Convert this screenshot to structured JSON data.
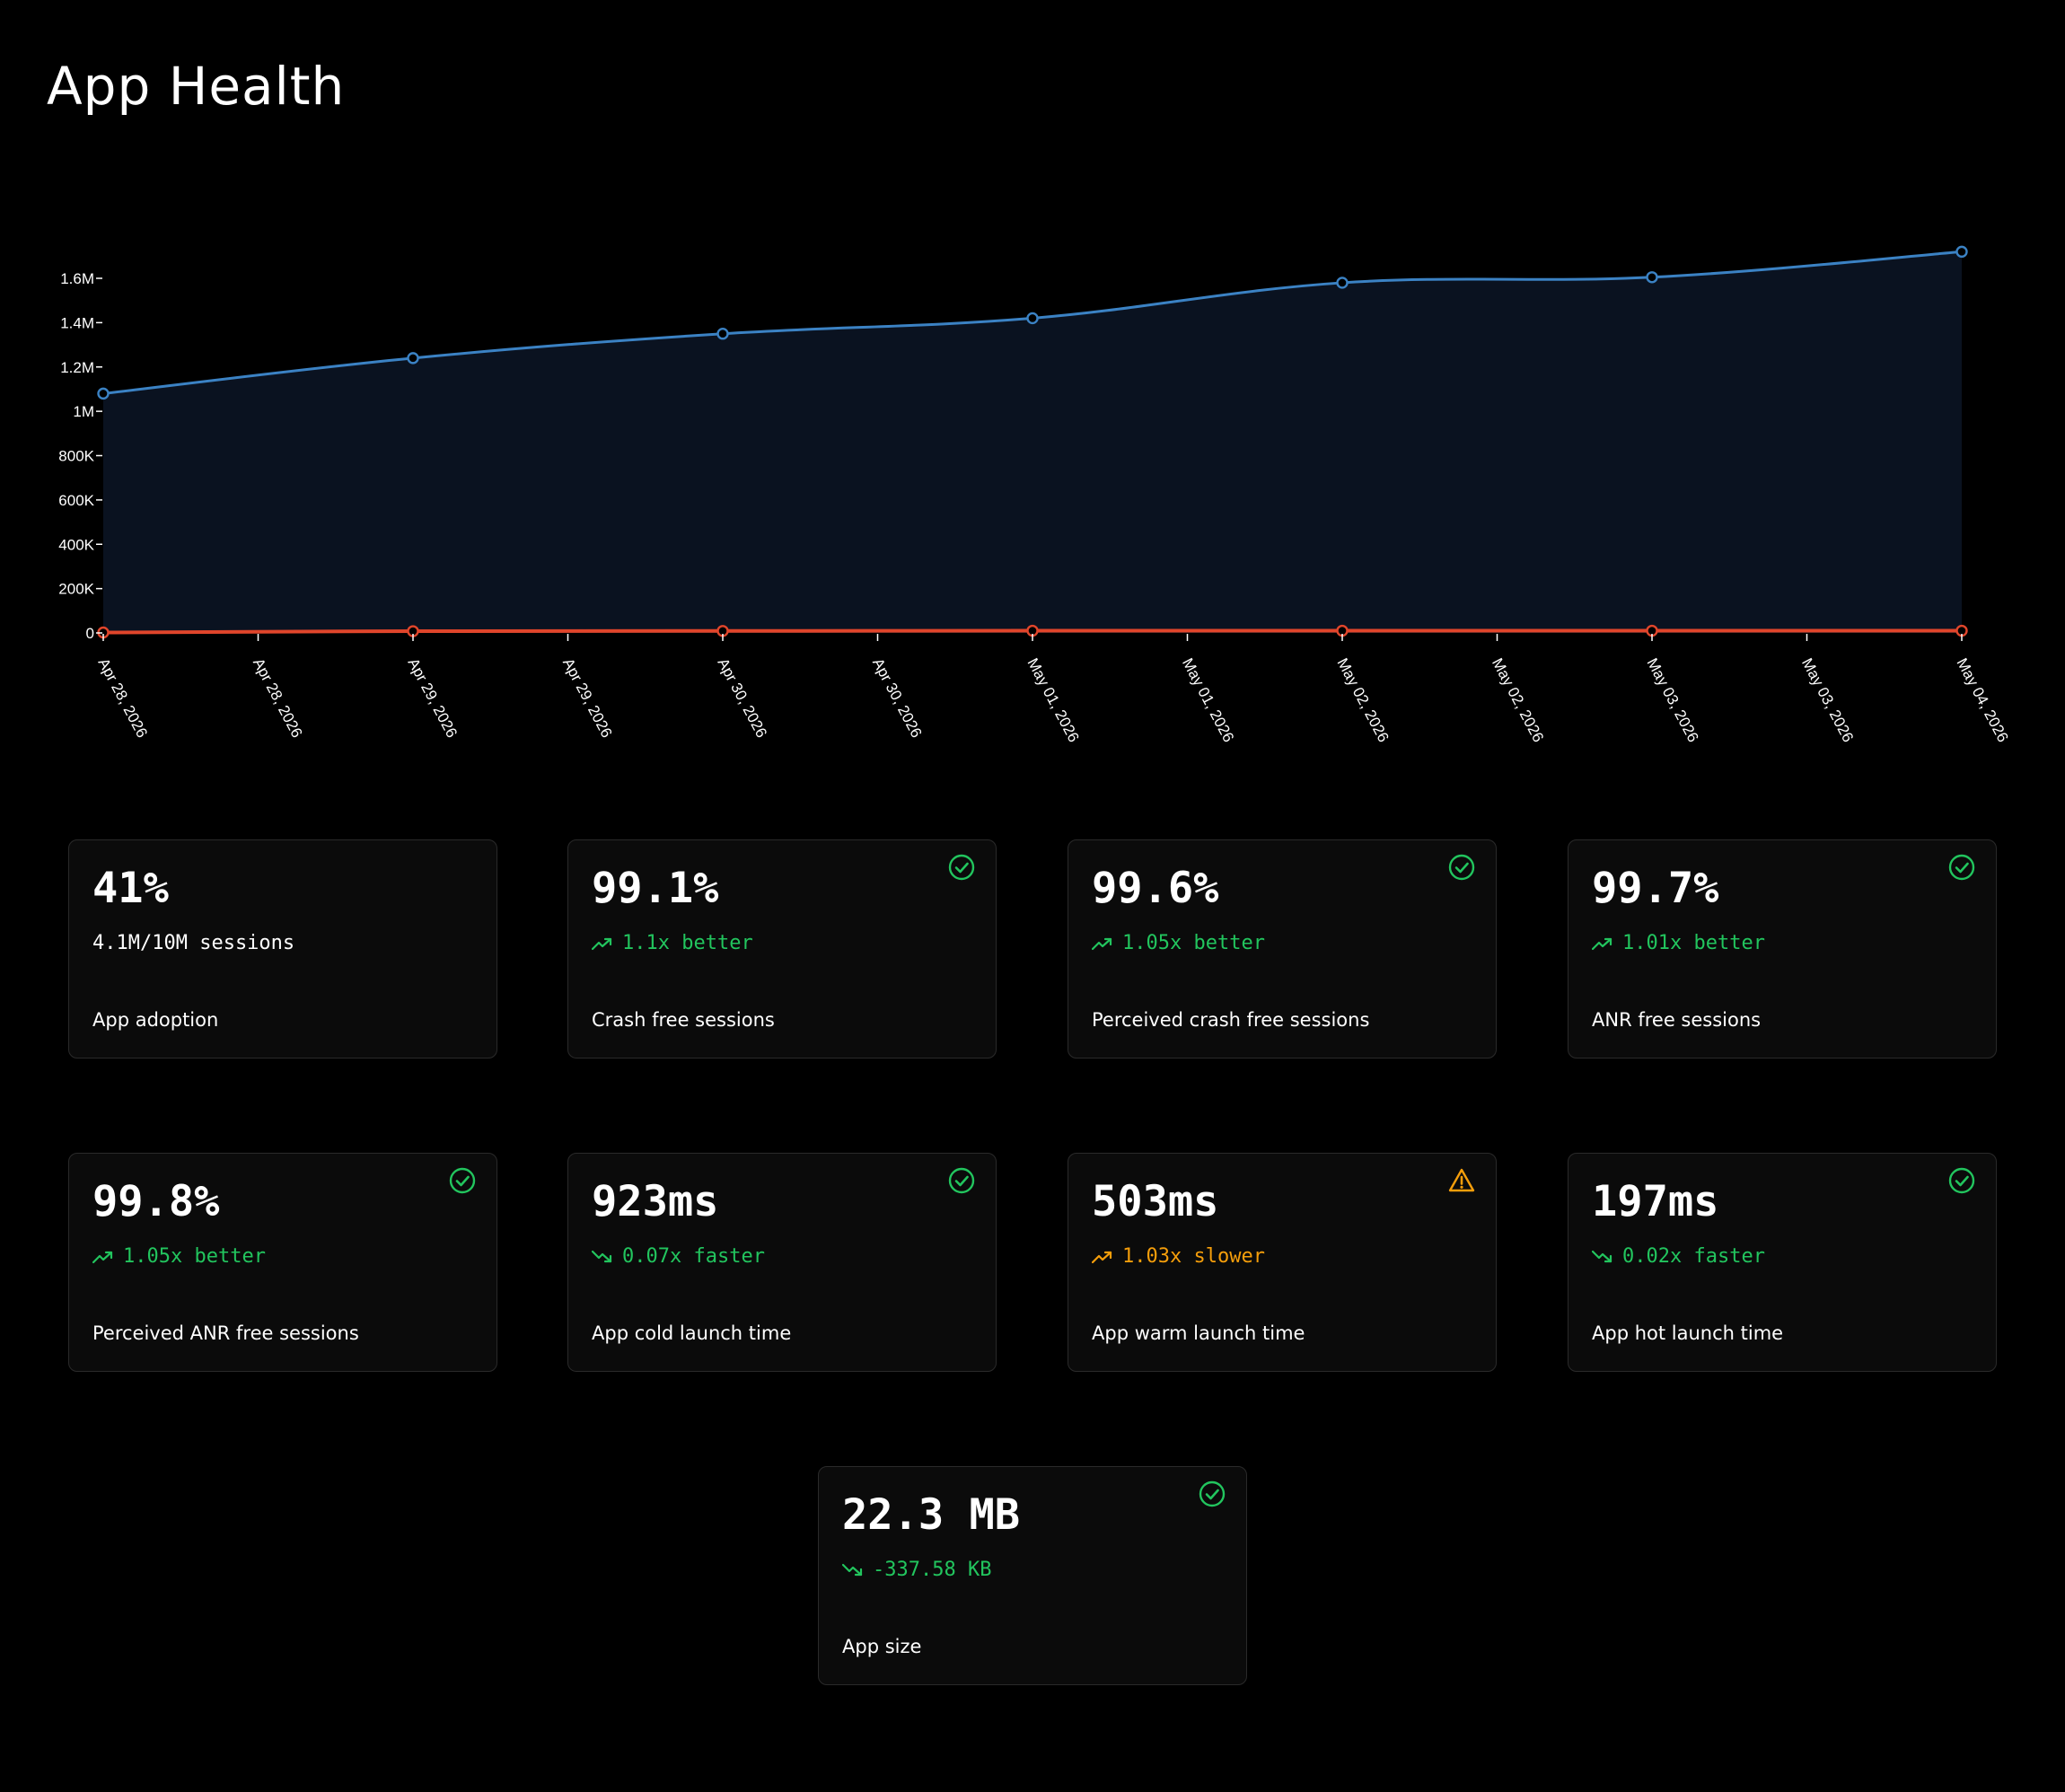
{
  "page": {
    "title": "App Health"
  },
  "colors": {
    "background": "#000000",
    "card_bg": "#0b0b0b",
    "card_border": "#2a2a2a",
    "good": "#22c55e",
    "warn": "#f59e0b",
    "series_primary": "#3b82c4",
    "series_secondary": "#e0452b"
  },
  "chart_data": {
    "type": "area",
    "title": "",
    "xlabel": "",
    "ylabel": "",
    "ylim": [
      0,
      1600000
    ],
    "y_ticks": [
      "0",
      "200K",
      "400K",
      "600K",
      "800K",
      "1M",
      "1.2M",
      "1.4M",
      "1.6M"
    ],
    "y_tick_values": [
      0,
      200000,
      400000,
      600000,
      800000,
      1000000,
      1200000,
      1400000,
      1600000
    ],
    "x_tick_labels": [
      "Apr 28, 2026",
      "Apr 28, 2026",
      "Apr 29, 2026",
      "Apr 29, 2026",
      "Apr 30, 2026",
      "Apr 30, 2026",
      "May 01, 2026",
      "May 01, 2026",
      "May 02, 2026",
      "May 02, 2026",
      "May 03, 2026",
      "May 03, 2026",
      "May 04, 2026"
    ],
    "x": [
      "Apr 28, 2026",
      "Apr 29, 2026",
      "Apr 30, 2026",
      "May 01, 2026",
      "May 02, 2026",
      "May 03, 2026",
      "May 04, 2026"
    ],
    "grid": false,
    "series": [
      {
        "values": [
          1080000,
          1240000,
          1350000,
          1420000,
          1580000,
          1605000,
          1720000
        ],
        "color": "#3b82c4",
        "fill": true
      },
      {
        "values": [
          2000,
          8000,
          9000,
          10000,
          10000,
          10000,
          10000
        ],
        "color": "#e0452b",
        "fill": false
      }
    ]
  },
  "cards": [
    {
      "value": "41%",
      "delta": "4.1M/10M sessions",
      "label": "App adoption",
      "status": "none",
      "trend": "none",
      "tone": "neutral"
    },
    {
      "value": "99.1%",
      "delta": "1.1x better",
      "label": "Crash free sessions",
      "status": "check-icon",
      "trend": "trend-up-icon",
      "tone": "good"
    },
    {
      "value": "99.6%",
      "delta": "1.05x better",
      "label": "Perceived crash free sessions",
      "status": "check-icon",
      "trend": "trend-up-icon",
      "tone": "good"
    },
    {
      "value": "99.7%",
      "delta": "1.01x better",
      "label": "ANR free sessions",
      "status": "check-icon",
      "trend": "trend-up-icon",
      "tone": "good"
    },
    {
      "value": "99.8%",
      "delta": "1.05x better",
      "label": "Perceived ANR free sessions",
      "status": "check-icon",
      "trend": "trend-up-icon",
      "tone": "good"
    },
    {
      "value": "923ms",
      "delta": "0.07x faster",
      "label": "App cold launch time",
      "status": "check-icon",
      "trend": "trend-down-icon",
      "tone": "good"
    },
    {
      "value": "503ms",
      "delta": "1.03x slower",
      "label": "App warm launch time",
      "status": "warning-icon",
      "trend": "trend-up-icon",
      "tone": "warn"
    },
    {
      "value": "197ms",
      "delta": "0.02x faster",
      "label": "App hot launch time",
      "status": "check-icon",
      "trend": "trend-down-icon",
      "tone": "good"
    },
    {
      "value": "22.3 MB",
      "delta": "-337.58 KB",
      "label": "App size",
      "status": "check-icon",
      "trend": "trend-down-icon",
      "tone": "good"
    }
  ]
}
